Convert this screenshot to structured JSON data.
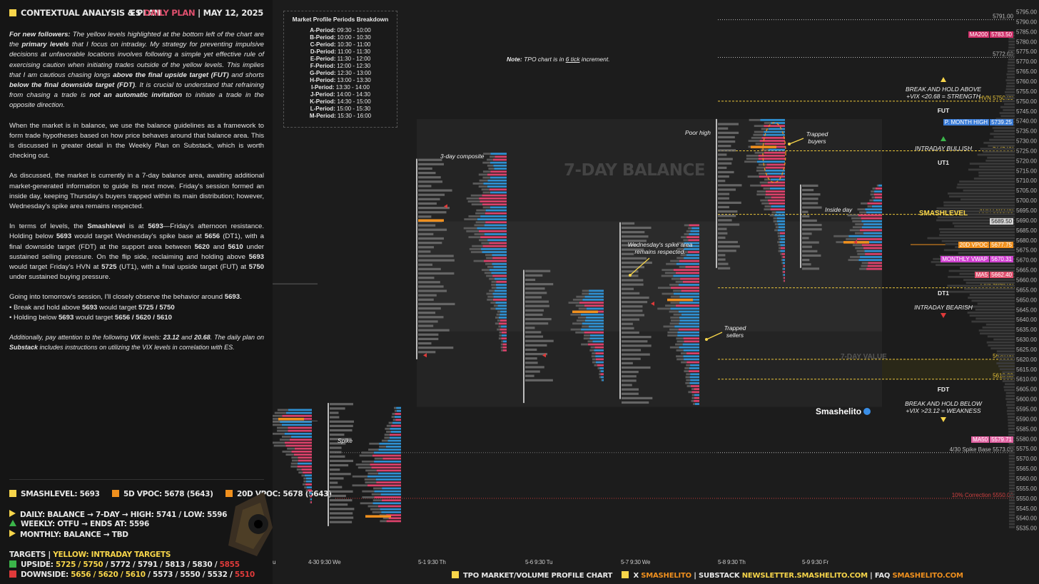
{
  "header": {
    "title": "CONTEXTUAL ANALYSIS & PLAN",
    "es": "ES",
    "plan": "DAILY PLAN",
    "sep": "|",
    "date": "MAY 12, 2025"
  },
  "body": {
    "p1_a": "For new followers:",
    "p1_b": " The yellow levels highlighted at the bottom left of the chart are the ",
    "p1_c": "primary levels",
    "p1_d": " that I focus on intraday. My strategy for preventing impulsive decisions at unfavorable locations involves following a simple yet effective rule of exercising caution when initiating trades outside of the yellow levels. This implies that I am cautious chasing longs ",
    "p1_e": "above the final upside target (FUT)",
    "p1_f": " and shorts ",
    "p1_g": "below the final downside target (FDT)",
    "p1_h": ". It is crucial to understand that refraining from chasing a trade is ",
    "p1_i": "not an automatic invitation",
    "p1_j": " to initiate a trade in the opposite direction.",
    "p2": "When the market is in balance, we use the balance guidelines as a framework to form trade hypotheses based on how price behaves around that balance area. This is discussed in greater detail in the Weekly Plan on Substack, which is worth checking out.",
    "p3": "As discussed, the market is currently in a 7-day balance area, awaiting additional market-generated information to guide its next move. Friday's session formed an inside day, keeping Thursday's buyers trapped within its main distribution; however, Wednesday's spike area remains respected.",
    "p4_a": "In terms of levels, the ",
    "p4_b": "Smashlevel",
    "p4_c": " is at ",
    "p4_d": "5693",
    "p4_e": "—Friday's afternoon resistance. Holding below ",
    "p4_f": "5693",
    "p4_g": " would target Wednesday's spike base at ",
    "p4_h": "5656",
    "p4_i": " (DT1), with a final downside target (FDT) at the support area between ",
    "p4_j": "5620",
    "p4_k": " and ",
    "p4_l": "5610",
    "p4_m": " under sustained selling pressure. On the flip side, reclaiming and holding above ",
    "p4_n": "5693",
    "p4_o": " would target Friday's HVN at ",
    "p4_p": "5725",
    "p4_q": " (UT1), with a final upside target (FUT) at ",
    "p4_r": "5750",
    "p4_s": " under sustained buying pressure.",
    "p5_a": "Going into tomorrow's session, I'll closely observe the behavior around ",
    "p5_b": "5693",
    "p5_c": ".",
    "b1_a": "• Break and hold above ",
    "b1_b": "5693",
    "b1_c": " would target ",
    "b1_d": "5725 / 5750",
    "b2_a": "• Holding below ",
    "b2_b": "5693",
    "b2_c": " would target ",
    "b2_d": "5656 / 5620 / 5610",
    "p6_a": "Additionally, pay attention to the following ",
    "p6_b": "VIX",
    "p6_c": " levels: ",
    "p6_d": "23.12",
    "p6_e": " and ",
    "p6_f": "20.68",
    "p6_g": ". The daily plan on ",
    "p6_h": "Substack",
    "p6_i": " includes instructions on utilizing the VIX levels in correlation with ES."
  },
  "legend": {
    "smash": "SMASHLEVEL: 5693",
    "vpoc5": "5D VPOC: 5678 (5643)",
    "vpoc20": "20D VPOC: 5678 (5643)",
    "daily": "DAILY: BALANCE → 7-DAY → HIGH: 5741 / LOW: 5596",
    "weekly": "WEEKLY: OTFU → ENDS AT: 5596",
    "monthly": "MONTHLY: BALANCE → TBD",
    "targets_a": "TARGETS",
    "targets_sep": "|",
    "targets_b": "YELLOW: INTRADAY TARGETS",
    "up_a": "UPSIDE: ",
    "up_b": "5725 / 5750",
    "up_c": " / 5772 / 5791 / 5813 / 5830 / ",
    "up_d": "5855",
    "dn_a": "DOWNSIDE: ",
    "dn_b": "5656 / 5620 / 5610",
    "dn_c": " / 5573 / 5550 / 5532 / ",
    "dn_d": "5510",
    "colors": {
      "yellow": "#f7d54a",
      "orange": "#f0901e",
      "green": "#3bb54a",
      "red": "#e03a3a",
      "pink": "#e0506e"
    }
  },
  "periods": {
    "title": "Market Profile Periods Breakdown",
    "rows": [
      {
        "p": "A-Period:",
        "t": "09:30 - 10:00"
      },
      {
        "p": "B-Period:",
        "t": "10:00 - 10:30"
      },
      {
        "p": "C-Period:",
        "t": "10:30 - 11:00"
      },
      {
        "p": "D-Period:",
        "t": "11:00 - 11:30"
      },
      {
        "p": "E-Period:",
        "t": "11:30 - 12:00"
      },
      {
        "p": "F-Period:",
        "t": "12:00 - 12:30"
      },
      {
        "p": "G-Period:",
        "t": "12:30 - 13:00"
      },
      {
        "p": "H-Period:",
        "t": "13:00 - 13:30"
      },
      {
        "p": "I-Period:",
        "t": "13:30 - 14:00"
      },
      {
        "p": "J-Period:",
        "t": "14:00 - 14:30"
      },
      {
        "p": "K-Period:",
        "t": "14:30 - 15:00"
      },
      {
        "p": "L-Period:",
        "t": "15:00 - 15:30"
      },
      {
        "p": "M-Period:",
        "t": "15:30 - 16:00"
      }
    ]
  },
  "note": {
    "a": "Note:",
    "b": " TPO chart is in ",
    "c": "6 tick",
    "d": " increment."
  },
  "annotations": {
    "composite": "3-day composite",
    "balance": "7-DAY BALANCE",
    "value": "7-DAY VALUE",
    "poor_high": "Poor high",
    "trapped_buyers": "Trapped buyers",
    "inside_day": "Inside day",
    "spike_area": "Wednesday's spike area remains respected.",
    "trapped_sellers": "Trapped sellers",
    "spike": "Spike",
    "brand": "Smashelito",
    "break_above": "BREAK AND HOLD ABOVE",
    "vix_above": "+VIX <20.68 = STRENGTH",
    "fut": "FUT",
    "intraday_bullish": "INTRADAY BULLISH",
    "ut1": "UT1",
    "smashlevel": "SMASHLEVEL",
    "dt1": "DT1",
    "intraday_bearish": "INTRADAY BEARISH",
    "fdt": "FDT",
    "break_below": "BREAK AND HOLD BELOW",
    "vix_below": "+VIX >23.12 = WEAKNESS"
  },
  "chart_data": {
    "type": "bar",
    "title": "",
    "y_axis": {
      "min": 5535,
      "max": 5795,
      "step": 5,
      "tick_labels": [
        "5795.00",
        "5790.00",
        "5785.00",
        "5780.00",
        "5775.00",
        "5770.00",
        "5765.00",
        "5760.00",
        "5755.00",
        "5750.00",
        "5745.00",
        "5740.00",
        "5735.00",
        "5730.00",
        "5725.00",
        "5720.00",
        "5715.00",
        "5710.00",
        "5705.00",
        "5700.00",
        "5695.00",
        "5690.00",
        "5685.00",
        "5680.00",
        "5675.00",
        "5670.00",
        "5665.00",
        "5660.00",
        "5655.00",
        "5650.00",
        "5645.00",
        "5640.00",
        "5635.00",
        "5630.00",
        "5625.00",
        "5620.00",
        "5615.00",
        "5610.00",
        "5605.00",
        "5600.00",
        "5595.00",
        "5590.00",
        "5585.00",
        "5580.00",
        "5575.00",
        "5570.00",
        "5565.00",
        "5560.00",
        "5555.00",
        "5550.00",
        "5545.00",
        "5540.00",
        "5535.00"
      ]
    },
    "x_labels": [
      "u",
      "4-30  9:30 We",
      "5-1  9:30 Th",
      "5-6  9:30 Tu",
      "5-7  9:30 We",
      "5-8  9:30 Th",
      "5-9  9:30 Fr"
    ],
    "levels": [
      {
        "name": "",
        "text": "5791.00",
        "value": 5791,
        "style": "dotted",
        "color": "#bbbbbb"
      },
      {
        "name": "",
        "text": "5772.00",
        "value": 5772,
        "style": "dotted",
        "color": "#bbbbbb"
      },
      {
        "name": "HVN",
        "text": "HVN  5750.00",
        "value": 5750,
        "style": "dashed",
        "color": "#e8c43a"
      },
      {
        "name": "",
        "text": "5725.00",
        "value": 5725,
        "style": "dashed",
        "color": "#e8c43a"
      },
      {
        "name": "ARH",
        "text": "ARH  5693.00",
        "value": 5693,
        "style": "dashed",
        "color": "#e8c43a"
      },
      {
        "name": "LVN",
        "text": "LVN  5656.00",
        "value": 5656,
        "style": "dashed",
        "color": "#e8c43a"
      },
      {
        "name": "",
        "text": "5620.00",
        "value": 5620,
        "style": "dashed",
        "color": "#e8c43a"
      },
      {
        "name": "",
        "text": "5610.00",
        "value": 5610,
        "style": "dashed",
        "color": "#e8c43a"
      },
      {
        "name": "4/30 Spike Base",
        "text": "4/30 Spike Base  5573.00",
        "value": 5573,
        "style": "dotted",
        "color": "#bbbbbb"
      },
      {
        "name": "10% Correction",
        "text": "10% Correction  5550.00",
        "value": 5550,
        "style": "dotted",
        "color": "#d04040"
      }
    ],
    "badges": [
      {
        "name": "MA200",
        "price": "5783.50",
        "value": 5783.5,
        "color": "#d0306a"
      },
      {
        "name": "P. MONTH HIGH",
        "price": "5739.25",
        "value": 5739.25,
        "color": "#3a7bd5"
      },
      {
        "name": "",
        "price": "5689.50",
        "value": 5689.5,
        "color": "#d8d8d8"
      },
      {
        "name": "20D VPOC",
        "price": "5677.75",
        "value": 5677.75,
        "color": "#f0901e"
      },
      {
        "name": "MONTHLY VWAP",
        "price": "5670.31",
        "value": 5670.31,
        "color": "#d040d0"
      },
      {
        "name": "MA5",
        "price": "5662.40",
        "value": 5662.4,
        "color": "#e0506e"
      },
      {
        "name": "MA50",
        "price": "5579.71",
        "value": 5579.71,
        "color": "#e060a0"
      }
    ],
    "balance_area": {
      "high": 5741,
      "low": 5596
    },
    "value_area": {
      "high": 5689.5,
      "low": 5634
    }
  },
  "footer": {
    "a": "TPO MARKET/VOLUME PROFILE CHART",
    "b": "X",
    "c": "SMASHELITO",
    "d": "|",
    "e": "SUBSTACK",
    "f": "NEWSLETTER.SMASHELITO.COM",
    "g": "|",
    "h": "FAQ",
    "i": "SMASHELITO.COM"
  }
}
